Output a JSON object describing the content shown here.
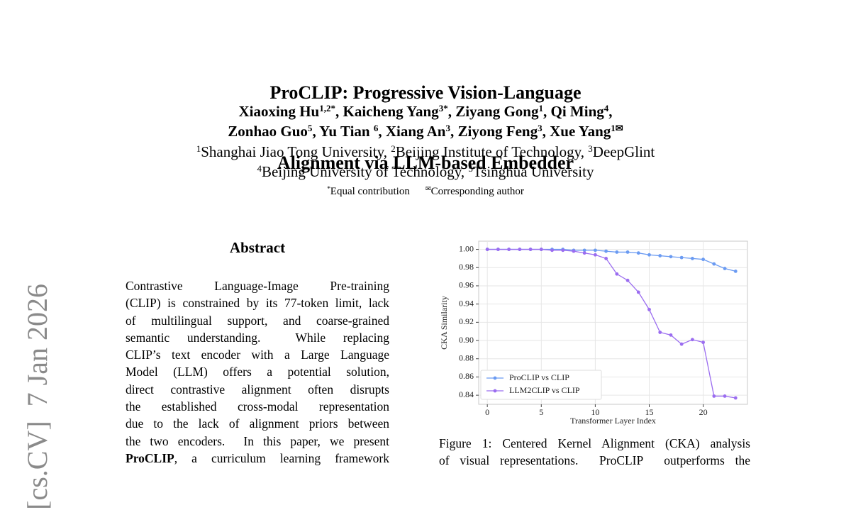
{
  "header": {
    "title_lines": [
      "ProCLIP: Progressive Vision-Language",
      "Alignment via LLM-based Embedder"
    ],
    "author_lines": [
      [
        {
          "name": "Xiaoxing Hu",
          "sup": "1,2*",
          "tail": ","
        },
        {
          "name": "Kaicheng Yang",
          "sup": "3*",
          "tail": ","
        },
        {
          "name": "Ziyang Gong",
          "sup": "1",
          "tail": ","
        },
        {
          "name": "Qi Ming",
          "sup": "4",
          "tail": ","
        }
      ],
      [
        {
          "name": "Zonhao Guo",
          "sup": "5",
          "tail": ","
        },
        {
          "name": "Yu Tian ",
          "sup": "6",
          "tail": ","
        },
        {
          "name": "Xiang An",
          "sup": "3",
          "tail": ","
        },
        {
          "name": "Ziyong Feng",
          "sup": "3",
          "tail": ","
        },
        {
          "name": "Xue Yang",
          "sup": "1✉"
        }
      ]
    ],
    "affiliation_lines": [
      [
        {
          "sup": "1",
          "name": "Shanghai Jiao Tong University",
          "tail": ","
        },
        {
          "sup": "2",
          "name": "Beijing Institute of Technology",
          "tail": ","
        },
        {
          "sup": "3",
          "name": "DeepGlint"
        }
      ],
      [
        {
          "sup": "4",
          "name": "Beijing University of Technology",
          "tail": ","
        },
        {
          "sup": "5",
          "name": "Tsinghua University"
        }
      ]
    ],
    "footnotes": [
      {
        "sup": "*",
        "name": "Equal contribution"
      },
      {
        "sup": "✉",
        "name": "Corresponding author"
      }
    ]
  },
  "side_stamp": "[cs.CV]  7 Jan 2026",
  "abstract": {
    "heading": "Abstract",
    "lines": [
      "Contrastive Language-Image Pre-training",
      "(CLIP) is constrained by its 77-token limit, lack",
      "of multilingual support, and coarse-grained",
      "semantic understanding.  While replacing",
      "CLIP’s text encoder with a Large Language",
      "Model (LLM) offers a potential solution,",
      "direct contrastive alignment often disrupts",
      "the established cross-modal representation",
      "due to the lack of alignment priors between",
      "the two encoders.  In this paper, we present"
    ],
    "last_line_bold": "ProCLIP",
    "last_line_rest": ", a curriculum learning framework"
  },
  "figure": {
    "caption_lines": [
      "Figure 1: Centered Kernel Alignment (CKA) analysis",
      "of visual representations.  ProCLIP  outperforms the"
    ],
    "chart_data": {
      "type": "line",
      "xlabel": "Transformer Layer Index",
      "ylabel": "CKA Similarity",
      "x": [
        0,
        1,
        2,
        3,
        4,
        5,
        6,
        7,
        8,
        9,
        10,
        11,
        12,
        13,
        14,
        15,
        16,
        17,
        18,
        19,
        20,
        21,
        22,
        23
      ],
      "series": [
        {
          "name": "ProCLIP vs CLIP",
          "color": "#6b9bf2",
          "values": [
            1.0,
            1.0,
            1.0,
            1.0,
            1.0,
            1.0,
            1.0,
            1.0,
            0.999,
            0.999,
            0.999,
            0.998,
            0.997,
            0.997,
            0.996,
            0.994,
            0.993,
            0.992,
            0.991,
            0.99,
            0.989,
            0.984,
            0.979,
            0.976
          ]
        },
        {
          "name": "LLM2CLIP vs CLIP",
          "color": "#9b6df0",
          "values": [
            1.0,
            1.0,
            1.0,
            1.0,
            1.0,
            1.0,
            0.999,
            0.999,
            0.998,
            0.996,
            0.994,
            0.99,
            0.973,
            0.966,
            0.953,
            0.934,
            0.909,
            0.906,
            0.896,
            0.901,
            0.898,
            0.839,
            0.839,
            0.837
          ]
        }
      ],
      "xlim": [
        -0.8,
        24.1
      ],
      "ylim": [
        0.83,
        1.009
      ],
      "xticks": [
        0,
        5,
        10,
        15,
        20
      ],
      "yticks": [
        0.84,
        0.86,
        0.88,
        {
          "value": 0.9,
          "label": "0.90"
        },
        0.92,
        0.94,
        0.96,
        0.98,
        {
          "value": 1,
          "label": "1.00"
        }
      ],
      "grid": true,
      "legend": "lower left"
    }
  }
}
